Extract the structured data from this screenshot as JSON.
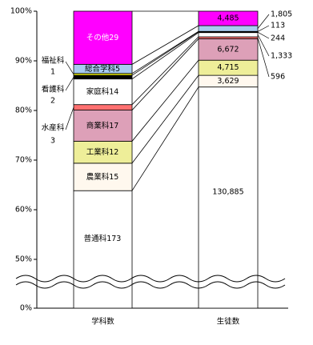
{
  "chart_data": {
    "type": "bar",
    "stack": "percent",
    "categories": [
      "学科数",
      "生徒数"
    ],
    "ylim": [
      0,
      100
    ],
    "ybreak": [
      0,
      50
    ],
    "yticks": [
      {
        "value": 0,
        "label": "0%"
      },
      {
        "value": 50,
        "label": "50%"
      },
      {
        "value": 60,
        "label": "60%"
      },
      {
        "value": 70,
        "label": "70%"
      },
      {
        "value": 80,
        "label": "80%"
      },
      {
        "value": 90,
        "label": "90%"
      },
      {
        "value": 100,
        "label": "100%"
      }
    ],
    "series": [
      {
        "name": "普通科",
        "color": "#ffffff",
        "values": [
          173,
          130885
        ],
        "value_labels": [
          "173",
          "130,885"
        ]
      },
      {
        "name": "農業科",
        "color": "#fff8ee",
        "values": [
          15,
          3629
        ],
        "value_labels": [
          "15",
          "3,629"
        ]
      },
      {
        "name": "工業科",
        "color": "#eeee99",
        "values": [
          12,
          4715
        ],
        "value_labels": [
          "12",
          "4,715"
        ]
      },
      {
        "name": "商業科",
        "color": "#dda0b8",
        "values": [
          17,
          6672
        ],
        "value_labels": [
          "17",
          "6,672"
        ]
      },
      {
        "name": "水産科",
        "color": "#ff7070",
        "values": [
          3,
          596
        ],
        "value_labels": [
          "3",
          "596"
        ]
      },
      {
        "name": "家庭科",
        "color": "#ffffff",
        "values": [
          14,
          1333
        ],
        "value_labels": [
          "14",
          "1,333"
        ]
      },
      {
        "name": "看護科",
        "color": "#000000",
        "values": [
          2,
          244
        ],
        "value_labels": [
          "2",
          "244"
        ]
      },
      {
        "name": "福祉科",
        "color": "#ffff00",
        "values": [
          1,
          113
        ],
        "value_labels": [
          "1",
          "113"
        ]
      },
      {
        "name": "総合学科",
        "color": "#a8ccf0",
        "values": [
          5,
          1805
        ],
        "value_labels": [
          "5",
          "1,805"
        ]
      },
      {
        "name": "その他",
        "color": "#ff00ff",
        "values": [
          29,
          4485
        ],
        "value_labels": [
          "29",
          "4,485"
        ]
      }
    ]
  }
}
